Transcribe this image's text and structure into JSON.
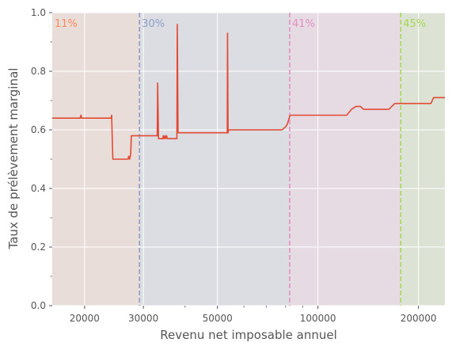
{
  "chart_data": {
    "type": "line",
    "xlabel": "Revenu net imposable annuel",
    "ylabel": "Taux de prélèvement marginal",
    "x_scale": "log",
    "xlim": [
      16000,
      240000
    ],
    "ylim": [
      0,
      1
    ],
    "x_ticks": [
      20000,
      30000,
      50000,
      100000,
      200000
    ],
    "x_tick_labels": [
      "20000",
      "30000",
      "50000",
      "100000",
      "200000"
    ],
    "y_ticks": [
      0.0,
      0.2,
      0.4,
      0.6,
      0.8,
      1.0
    ],
    "y_tick_labels": [
      "0.0",
      "0.2",
      "0.4",
      "0.6",
      "0.8",
      "1.0"
    ],
    "grid": true,
    "line_color": "#e24a33",
    "brackets": [
      {
        "label": "11%",
        "start": 16000,
        "end": 29200,
        "color": "#ff8a5b",
        "fill": "#e8ddd8"
      },
      {
        "label": "30%",
        "start": 29200,
        "end": 82300,
        "color": "#8ea0c9",
        "fill": "#dcdde3"
      },
      {
        "label": "41%",
        "start": 82300,
        "end": 177000,
        "color": "#e58fc3",
        "fill": "#e6dbe2"
      },
      {
        "label": "45%",
        "start": 177000,
        "end": 240000,
        "color": "#a6d854",
        "fill": "#dde3d4"
      }
    ],
    "series": [
      {
        "points": [
          [
            16000,
            0.64
          ],
          [
            19400,
            0.64
          ],
          [
            19500,
            0.65
          ],
          [
            19600,
            0.64
          ],
          [
            24000,
            0.64
          ],
          [
            24100,
            0.65
          ],
          [
            24300,
            0.5
          ],
          [
            27000,
            0.5
          ],
          [
            27100,
            0.51
          ],
          [
            27300,
            0.5
          ],
          [
            27500,
            0.52
          ],
          [
            27600,
            0.58
          ],
          [
            33000,
            0.58
          ],
          [
            33100,
            0.76
          ],
          [
            33300,
            0.57
          ],
          [
            34300,
            0.57
          ],
          [
            34400,
            0.58
          ],
          [
            34600,
            0.57
          ],
          [
            34800,
            0.58
          ],
          [
            35000,
            0.57
          ],
          [
            35200,
            0.58
          ],
          [
            35400,
            0.57
          ],
          [
            37800,
            0.57
          ],
          [
            37900,
            0.96
          ],
          [
            38100,
            0.59
          ],
          [
            53500,
            0.59
          ],
          [
            53600,
            0.93
          ],
          [
            53800,
            0.59
          ],
          [
            54000,
            0.6
          ],
          [
            78000,
            0.6
          ],
          [
            80000,
            0.61
          ],
          [
            81000,
            0.62
          ],
          [
            82500,
            0.65
          ],
          [
            122000,
            0.65
          ],
          [
            126000,
            0.67
          ],
          [
            130000,
            0.68
          ],
          [
            134000,
            0.68
          ],
          [
            137000,
            0.67
          ],
          [
            163000,
            0.67
          ],
          [
            170000,
            0.69
          ],
          [
            218000,
            0.69
          ],
          [
            222000,
            0.71
          ],
          [
            240000,
            0.71
          ]
        ]
      }
    ]
  }
}
